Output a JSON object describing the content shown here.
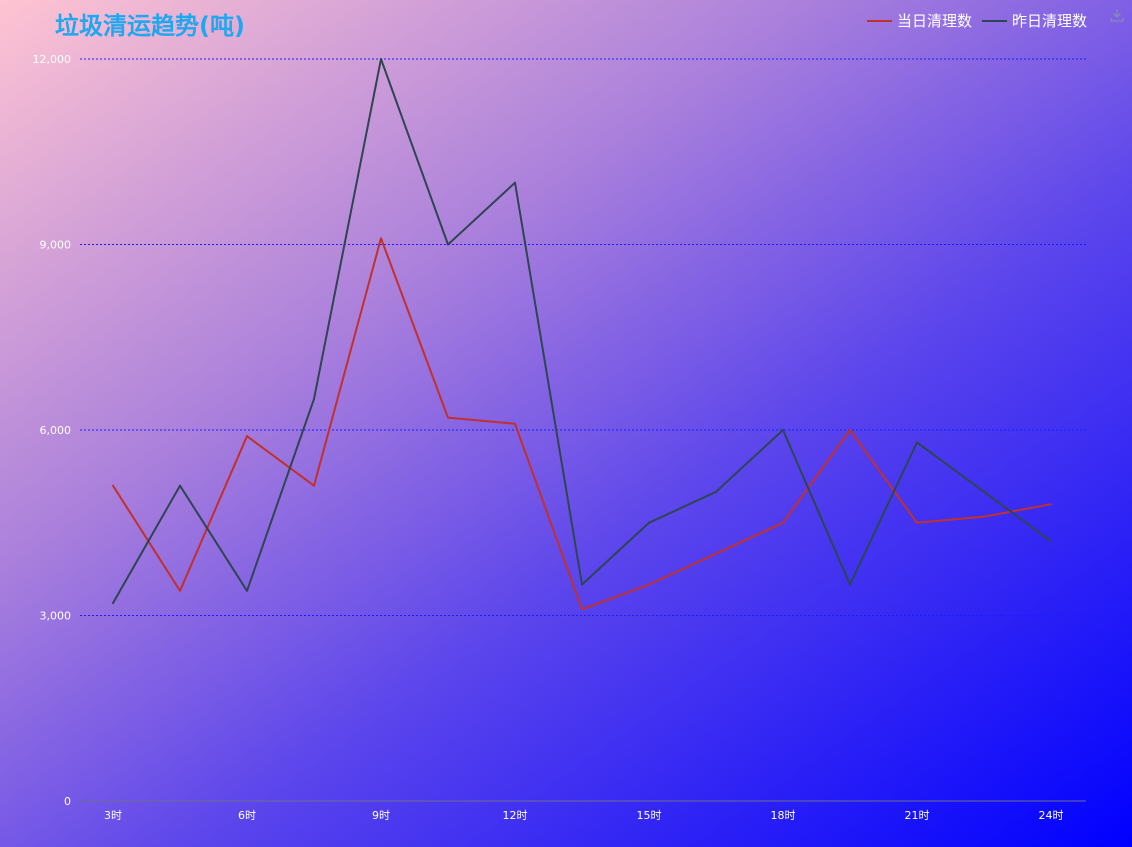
{
  "chart_data": {
    "type": "line",
    "title": "垃圾清运趋势(吨)",
    "categories": [
      "3时",
      "",
      "6时",
      "",
      "9时",
      "",
      "12时",
      "",
      "15时",
      "",
      "18时",
      "",
      "21时",
      "",
      "24时"
    ],
    "series": [
      {
        "name": "当日清理数",
        "color": "#c0312e",
        "values": [
          5100,
          3400,
          5900,
          5100,
          9100,
          6200,
          6100,
          3100,
          3500,
          4000,
          4500,
          6000,
          4500,
          4600,
          4800
        ]
      },
      {
        "name": "昨日清理数",
        "color": "#2f4553",
        "values": [
          3200,
          5100,
          3400,
          6500,
          12000,
          9000,
          10000,
          3500,
          4500,
          5000,
          6000,
          3500,
          5800,
          5000,
          4200
        ]
      }
    ],
    "yticks": [
      "0",
      "3,000",
      "6,000",
      "9,000",
      "12,000"
    ],
    "ylim": [
      0,
      12000
    ],
    "legend_position": "top-right",
    "grid": true,
    "grid_color": "#1c1cff"
  },
  "icons": {
    "save": "save-image-icon"
  }
}
